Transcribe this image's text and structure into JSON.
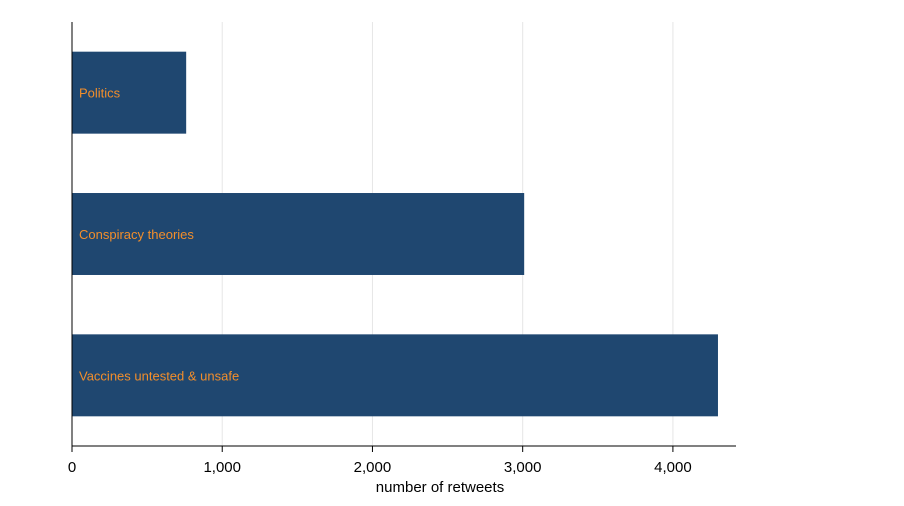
{
  "chart_data": {
    "type": "bar",
    "orientation": "horizontal",
    "categories": [
      "Politics",
      "Conspiracy theories",
      "Vaccines untested & unsafe"
    ],
    "values": [
      760,
      3010,
      4300
    ],
    "xlabel": "number of retweets",
    "ylabel": "",
    "xlim": [
      0,
      4420
    ],
    "xticks": [
      0,
      1000,
      2000,
      3000,
      4000
    ],
    "xtick_labels": [
      "0",
      "1,000",
      "2,000",
      "3,000",
      "4,000"
    ],
    "grid": true,
    "bar_labels_inside": true,
    "colors": {
      "bar": "#1f4770",
      "bar_label": "#f28e2b",
      "grid": "#e6e6e6",
      "axis": "#000000"
    }
  }
}
